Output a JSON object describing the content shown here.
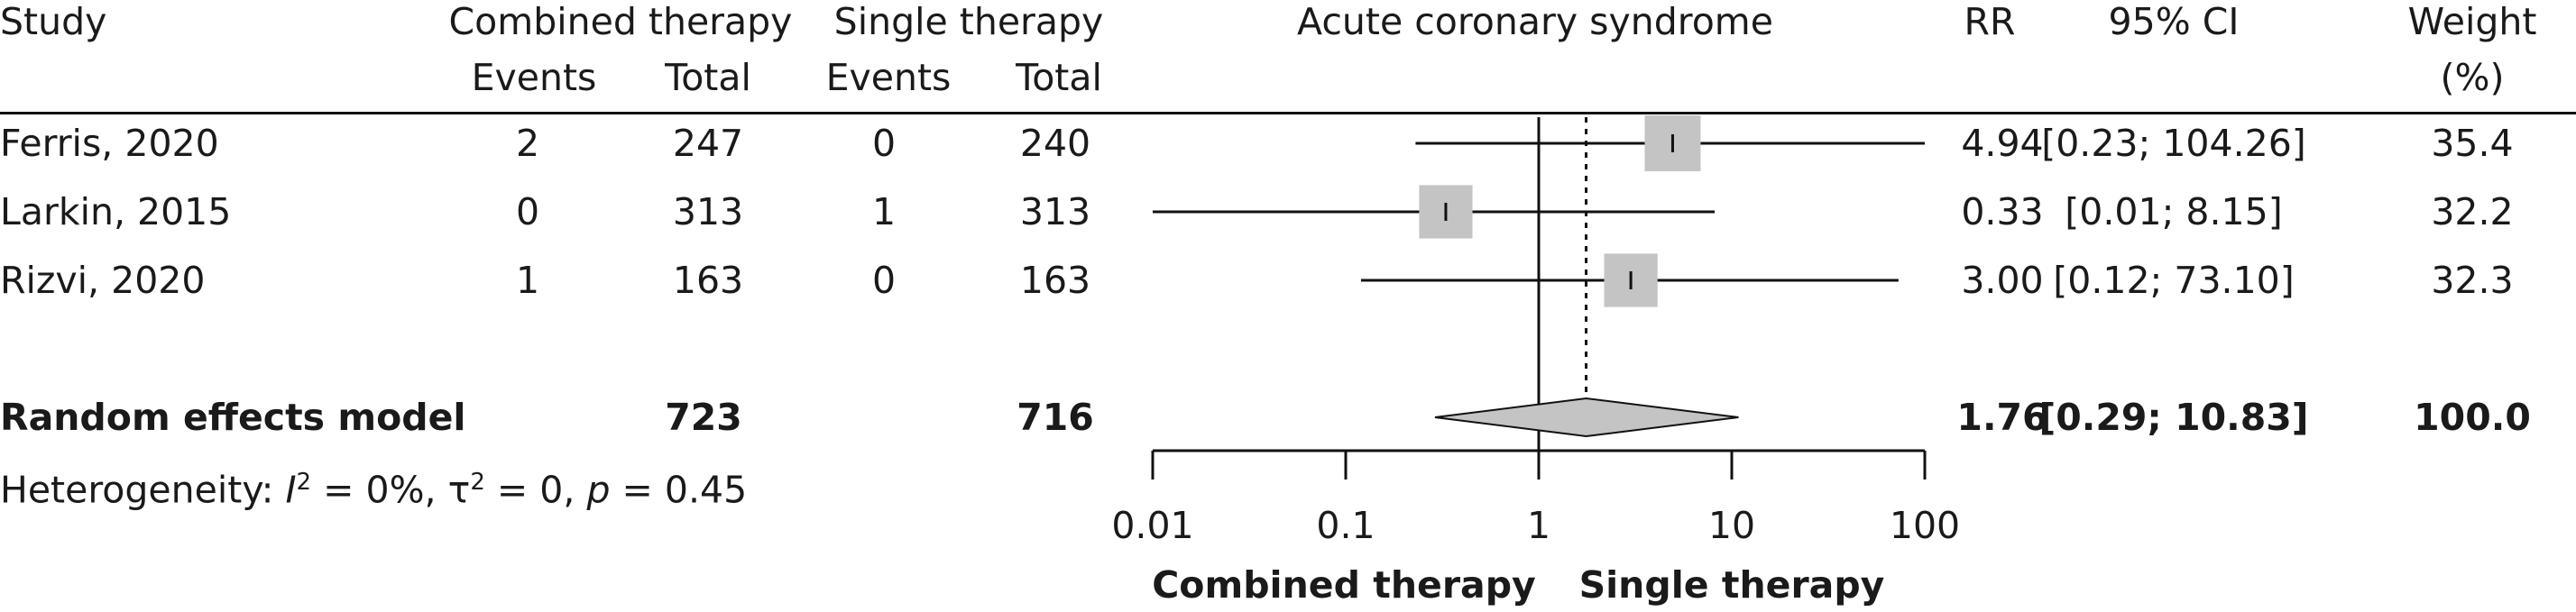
{
  "headers": {
    "study": "Study",
    "combined": "Combined therapy",
    "single": "Single therapy",
    "plot_title": "Acute coronary syndrome",
    "rr": "RR",
    "ci": "95% CI",
    "weight_line1": "Weight",
    "weight_line2": "(%)",
    "events_c": "Events",
    "total_c": "Total",
    "events_s": "Events",
    "total_s": "Total"
  },
  "studies": [
    {
      "study": "Ferris, 2020",
      "events_c": "2",
      "total_c": "247",
      "events_s": "0",
      "total_s": "240",
      "rr": "4.94",
      "ci": "[0.23; 104.26]",
      "weight": "35.4"
    },
    {
      "study": "Larkin, 2015",
      "events_c": "0",
      "total_c": "313",
      "events_s": "1",
      "total_s": "313",
      "rr": "0.33",
      "ci": "[0.01; 8.15]",
      "weight": "32.2"
    },
    {
      "study": "Rizvi, 2020",
      "events_c": "1",
      "total_c": "163",
      "events_s": "0",
      "total_s": "163",
      "rr": "3.00",
      "ci": "[0.12; 73.10]",
      "weight": "32.3"
    }
  ],
  "pooled": {
    "label": "Random effects model",
    "total_c": "723",
    "total_s": "716",
    "rr": "1.76",
    "ci": "[0.29; 10.83]",
    "weight": "100.0"
  },
  "heterogeneity": {
    "prefix": "Heterogeneity: ",
    "i_symbol": "I",
    "i_sup": "2",
    "i_value": " = 0%, τ",
    "tau_sup": "2",
    "tau_value": " = 0, ",
    "p_symbol": "p",
    "p_value": " = 0.45"
  },
  "axis": {
    "left_label": "Combined therapy",
    "right_label": "Single therapy"
  },
  "chart_data": {
    "type": "forest",
    "scale": "log",
    "xlim": [
      0.01,
      100
    ],
    "ticks": [
      0.01,
      0.1,
      1,
      10,
      100
    ],
    "tick_labels": [
      "0.01",
      "0.1",
      "1",
      "10",
      "100"
    ],
    "null_value": 1,
    "studies": [
      {
        "name": "Ferris, 2020",
        "rr": 4.94,
        "lower": 0.23,
        "upper": 104.26,
        "weight": 35.4
      },
      {
        "name": "Larkin, 2015",
        "rr": 0.33,
        "lower": 0.01,
        "upper": 8.15,
        "weight": 32.2
      },
      {
        "name": "Rizvi, 2020",
        "rr": 3.0,
        "lower": 0.12,
        "upper": 73.1,
        "weight": 32.3
      }
    ],
    "pooled": {
      "name": "Random effects model",
      "rr": 1.76,
      "lower": 0.29,
      "upper": 10.83
    },
    "colors": {
      "box": "#c4c4c4",
      "diamond": "#c4c4c4",
      "line": "#111111"
    }
  }
}
